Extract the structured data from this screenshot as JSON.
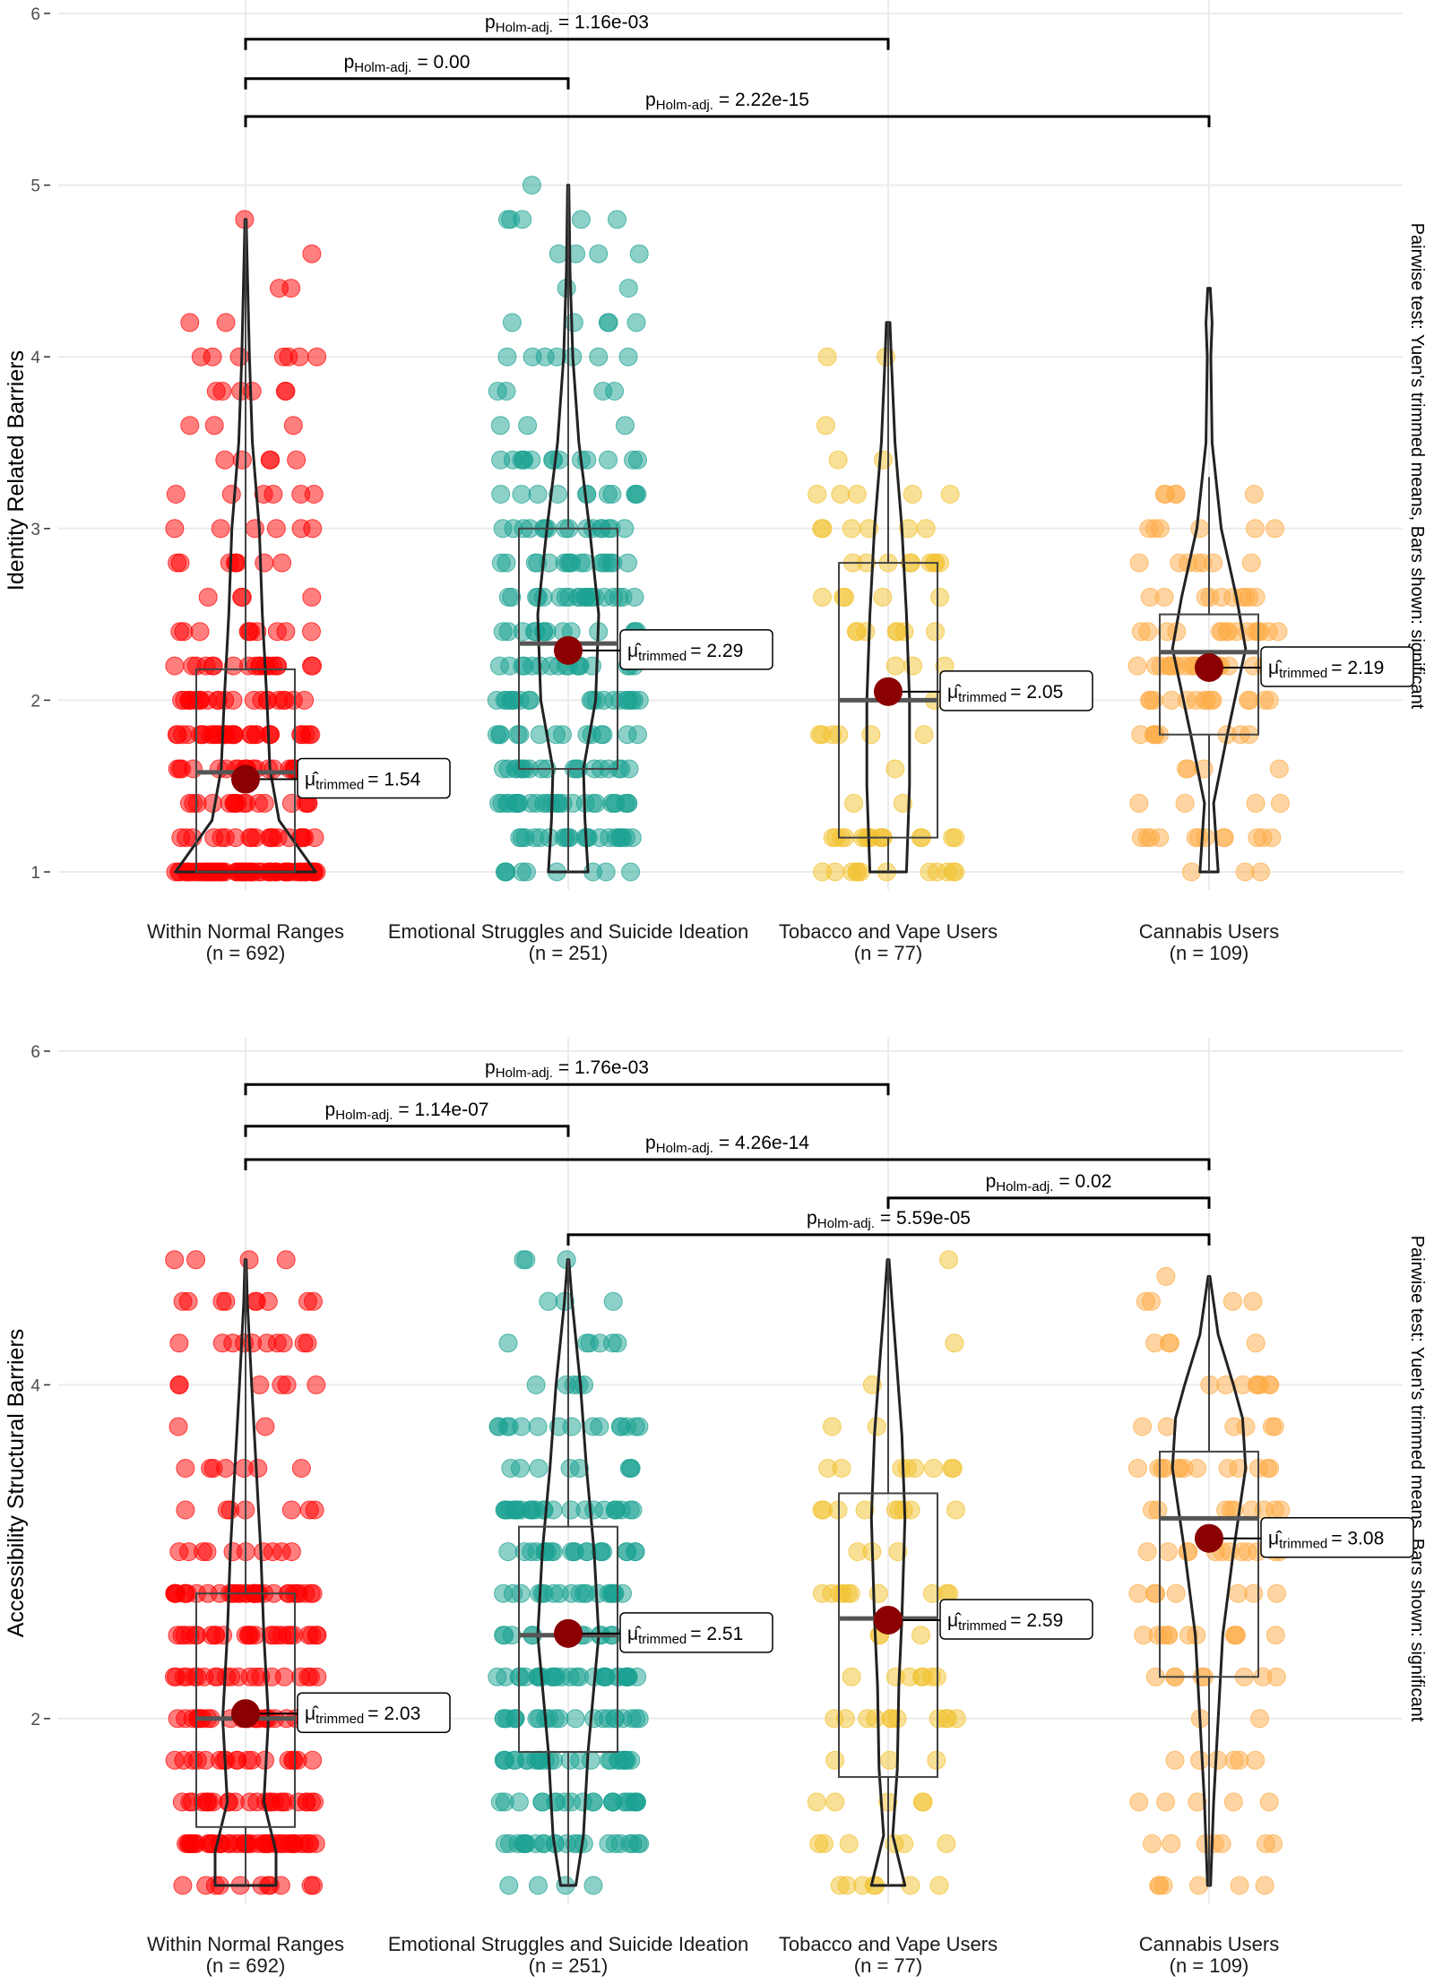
{
  "chart_data": [
    {
      "type": "violin-box-scatter",
      "ylabel": "Identity Related Barriers",
      "side_caption": "Pairwise test: Yuen's trimmed means, Bars shown: significant",
      "ylim": [
        1,
        6
      ],
      "yticks": [
        "1",
        "2",
        "3",
        "4",
        "5",
        "6"
      ],
      "grid": true,
      "groups": [
        {
          "name": "Within Normal Ranges",
          "n_label": "(n = 692)",
          "color": "#ff0000",
          "trimmed_mean": 1.54,
          "mean_label": "= 1.54",
          "box": {
            "q1": 1.0,
            "median": 1.58,
            "q3": 2.18,
            "whisker_low": 1.0,
            "whisker_high": 4.8
          },
          "violin": [
            [
              1.0,
              0.46
            ],
            [
              1.15,
              0.34
            ],
            [
              1.3,
              0.22
            ],
            [
              1.6,
              0.16
            ],
            [
              2.0,
              0.14
            ],
            [
              2.5,
              0.11
            ],
            [
              3.0,
              0.09
            ],
            [
              3.5,
              0.045
            ],
            [
              4.0,
              0.025
            ],
            [
              4.5,
              0.012
            ],
            [
              4.8,
              0.004
            ]
          ]
        },
        {
          "name": "Emotional Struggles and Suicide Ideation",
          "n_label": "(n = 251)",
          "color": "#1aa192",
          "trimmed_mean": 2.29,
          "mean_label": "= 2.29",
          "box": {
            "q1": 1.6,
            "median": 2.33,
            "q3": 3.0,
            "whisker_low": 1.0,
            "whisker_high": 5.0
          },
          "violin": [
            [
              1.0,
              0.13
            ],
            [
              1.3,
              0.11
            ],
            [
              1.6,
              0.1
            ],
            [
              2.0,
              0.18
            ],
            [
              2.5,
              0.2
            ],
            [
              3.0,
              0.14
            ],
            [
              3.5,
              0.07
            ],
            [
              4.0,
              0.03
            ],
            [
              4.5,
              0.012
            ],
            [
              5.0,
              0.004
            ]
          ]
        },
        {
          "name": "Tobacco and Vape Users",
          "n_label": "(n = 77)",
          "color": "#f2c12e",
          "trimmed_mean": 2.05,
          "mean_label": "= 2.05",
          "box": {
            "q1": 1.2,
            "median": 2.0,
            "q3": 2.8,
            "whisker_low": 1.0,
            "whisker_high": 4.2
          },
          "violin": [
            [
              1.0,
              0.12
            ],
            [
              1.5,
              0.14
            ],
            [
              2.0,
              0.14
            ],
            [
              2.5,
              0.12
            ],
            [
              3.0,
              0.09
            ],
            [
              3.5,
              0.045
            ],
            [
              4.0,
              0.02
            ],
            [
              4.2,
              0.012
            ]
          ]
        },
        {
          "name": "Cannabis Users",
          "n_label": "(n = 109)",
          "color": "#fdab45",
          "trimmed_mean": 2.19,
          "mean_label": "= 2.19",
          "box": {
            "q1": 1.8,
            "median": 2.28,
            "q3": 2.5,
            "whisker_low": 1.0,
            "whisker_high": 3.3
          },
          "violin": [
            [
              1.0,
              0.06
            ],
            [
              1.4,
              0.03
            ],
            [
              1.8,
              0.12
            ],
            [
              2.3,
              0.24
            ],
            [
              2.6,
              0.18
            ],
            [
              3.0,
              0.08
            ],
            [
              3.5,
              0.02
            ],
            [
              4.0,
              0.012
            ],
            [
              4.2,
              0.02
            ],
            [
              4.4,
              0.008
            ]
          ]
        }
      ],
      "comparisons": [
        {
          "from": 0,
          "to": 2,
          "y": 5.85,
          "label": "= 1.16e-03"
        },
        {
          "from": 0,
          "to": 1,
          "y": 5.62,
          "label": "= 0.00"
        },
        {
          "from": 0,
          "to": 3,
          "y": 5.4,
          "label": "= 2.22e-15"
        }
      ]
    },
    {
      "type": "violin-box-scatter",
      "ylabel": "Accessibility Structural Barriers",
      "side_caption": "Pairwise test: Yuen's trimmed means, Bars shown: significant",
      "ylim": [
        1,
        6
      ],
      "yticks": [
        "2",
        "4",
        "6"
      ],
      "grid": true,
      "groups": [
        {
          "name": "Within Normal Ranges",
          "n_label": "(n = 692)",
          "color": "#ff0000",
          "trimmed_mean": 2.03,
          "mean_label": "= 2.03",
          "box": {
            "q1": 1.35,
            "median": 2.0,
            "q3": 2.75,
            "whisker_low": 1.0,
            "whisker_high": 4.75
          },
          "violin": [
            [
              1.0,
              0.2
            ],
            [
              1.2,
              0.2
            ],
            [
              1.5,
              0.12
            ],
            [
              2.0,
              0.15
            ],
            [
              2.5,
              0.12
            ],
            [
              3.0,
              0.1
            ],
            [
              3.5,
              0.07
            ],
            [
              4.0,
              0.04
            ],
            [
              4.5,
              0.012
            ],
            [
              4.75,
              0.004
            ]
          ]
        },
        {
          "name": "Emotional Struggles and Suicide Ideation",
          "n_label": "(n = 251)",
          "color": "#1aa192",
          "trimmed_mean": 2.51,
          "mean_label": "= 2.51",
          "box": {
            "q1": 1.8,
            "median": 2.5,
            "q3": 3.15,
            "whisker_low": 1.0,
            "whisker_high": 4.75
          },
          "violin": [
            [
              1.0,
              0.05
            ],
            [
              1.3,
              0.1
            ],
            [
              1.8,
              0.13
            ],
            [
              2.5,
              0.2
            ],
            [
              3.0,
              0.17
            ],
            [
              3.5,
              0.12
            ],
            [
              4.0,
              0.08
            ],
            [
              4.5,
              0.025
            ],
            [
              4.75,
              0.004
            ]
          ]
        },
        {
          "name": "Tobacco and Vape Users",
          "n_label": "(n = 77)",
          "color": "#f2c12e",
          "trimmed_mean": 2.59,
          "mean_label": "= 2.59",
          "box": {
            "q1": 1.65,
            "median": 2.6,
            "q3": 3.35,
            "whisker_low": 1.0,
            "whisker_high": 4.75
          },
          "violin": [
            [
              1.0,
              0.11
            ],
            [
              1.3,
              0.03
            ],
            [
              1.7,
              0.06
            ],
            [
              2.2,
              0.07
            ],
            [
              2.6,
              0.09
            ],
            [
              3.2,
              0.11
            ],
            [
              3.7,
              0.09
            ],
            [
              4.2,
              0.05
            ],
            [
              4.5,
              0.025
            ],
            [
              4.75,
              0.006
            ]
          ]
        },
        {
          "name": "Cannabis Users",
          "n_label": "(n = 109)",
          "color": "#fdab45",
          "trimmed_mean": 3.08,
          "mean_label": "= 3.08",
          "box": {
            "q1": 2.25,
            "median": 3.2,
            "q3": 3.6,
            "whisker_low": 1.0,
            "whisker_high": 4.65
          },
          "violin": [
            [
              1.0,
              0.01
            ],
            [
              1.5,
              0.03
            ],
            [
              2.0,
              0.06
            ],
            [
              2.5,
              0.09
            ],
            [
              3.0,
              0.16
            ],
            [
              3.5,
              0.24
            ],
            [
              3.8,
              0.22
            ],
            [
              4.0,
              0.16
            ],
            [
              4.3,
              0.06
            ],
            [
              4.65,
              0.006
            ]
          ]
        }
      ],
      "comparisons": [
        {
          "from": 0,
          "to": 2,
          "y": 5.8,
          "label": "= 1.76e-03"
        },
        {
          "from": 0,
          "to": 1,
          "y": 5.55,
          "label": "= 1.14e-07"
        },
        {
          "from": 0,
          "to": 3,
          "y": 5.35,
          "label": "= 4.26e-14"
        },
        {
          "from": 2,
          "to": 3,
          "y": 5.12,
          "label": "= 0.02"
        },
        {
          "from": 1,
          "to": 3,
          "y": 4.9,
          "label": "= 5.59e-05"
        }
      ]
    }
  ],
  "labels": {
    "p_symbol": "p",
    "p_subscript": "Holm-adj.",
    "mu_symbol": "μ̂",
    "mu_subscript": "trimmed"
  }
}
